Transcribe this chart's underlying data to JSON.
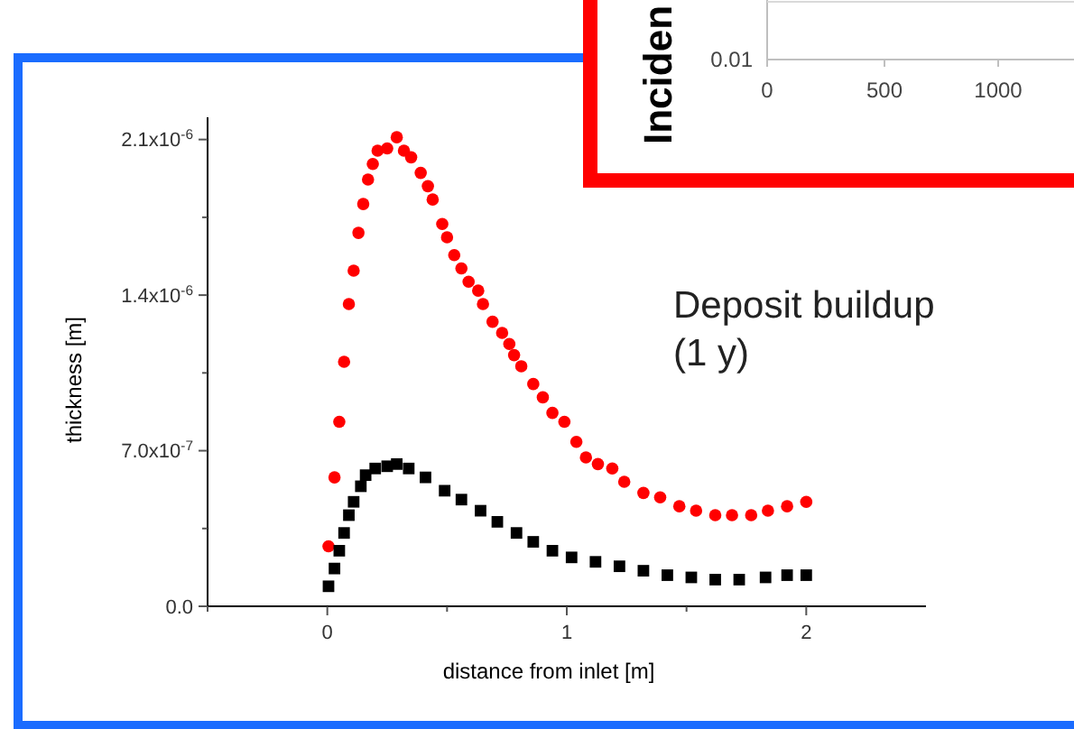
{
  "chart_data": [
    {
      "type": "scatter",
      "xlabel": "distance from inlet [m]",
      "ylabel": "thickness [m]",
      "xlim": [
        -0.5,
        2.5
      ],
      "xticks": [
        {
          "value": -0.5,
          "label": null
        },
        0,
        {
          "value": 0.5,
          "label": null
        },
        1,
        {
          "value": 1.5,
          "label": null
        },
        2
      ],
      "ylim": [
        0,
        2.2e-06
      ],
      "yticks": [
        {
          "value": 0,
          "label": "0.0"
        },
        {
          "value": 3.5e-07,
          "label": null
        },
        {
          "value": 7e-07,
          "label": "7.0x10$^{-7}$"
        },
        {
          "value": 1.05e-06,
          "label": null
        },
        {
          "value": 1.4e-06,
          "label": "1.4x10$^{-6}$"
        },
        {
          "value": 1.75e-06,
          "label": null
        },
        {
          "value": 2.1e-06,
          "label": "2.1x10$^{-6}$"
        }
      ],
      "grid": false,
      "annotations": [
        "Deposit buildup\n(1 y)"
      ],
      "series": [
        {
          "color": "#ff0000",
          "marker": "circle",
          "x": [
            0.005,
            0.03,
            0.05,
            0.07,
            0.09,
            0.11,
            0.13,
            0.15,
            0.17,
            0.19,
            0.21,
            0.25,
            0.29,
            0.32,
            0.35,
            0.39,
            0.42,
            0.44,
            0.48,
            0.5,
            0.53,
            0.56,
            0.59,
            0.63,
            0.65,
            0.69,
            0.73,
            0.76,
            0.78,
            0.81,
            0.86,
            0.9,
            0.94,
            0.99,
            1.04,
            1.08,
            1.13,
            1.19,
            1.24,
            1.32,
            1.39,
            1.47,
            1.54,
            1.62,
            1.69,
            1.77,
            1.84,
            1.92,
            2.0
          ],
          "values": [
            2.7e-07,
            5.8e-07,
            8.3e-07,
            1.1e-06,
            1.36e-06,
            1.51e-06,
            1.68e-06,
            1.81e-06,
            1.92e-06,
            1.99e-06,
            2.05e-06,
            2.06e-06,
            2.11e-06,
            2.05e-06,
            2.02e-06,
            1.95e-06,
            1.89e-06,
            1.83e-06,
            1.72e-06,
            1.66e-06,
            1.58e-06,
            1.52e-06,
            1.46e-06,
            1.42e-06,
            1.36e-06,
            1.28e-06,
            1.23e-06,
            1.18e-06,
            1.13e-06,
            1.08e-06,
            1e-06,
            9.4e-07,
            8.7e-07,
            8.3e-07,
            7.4e-07,
            6.7e-07,
            6.4e-07,
            6.2e-07,
            5.6e-07,
            5.1e-07,
            4.9e-07,
            4.5e-07,
            4.3e-07,
            4.1e-07,
            4.1e-07,
            4.1e-07,
            4.3e-07,
            4.5e-07,
            4.7e-07
          ]
        },
        {
          "color": "#000000",
          "marker": "square",
          "x": [
            0.005,
            0.03,
            0.05,
            0.07,
            0.09,
            0.11,
            0.14,
            0.16,
            0.2,
            0.25,
            0.29,
            0.34,
            0.41,
            0.49,
            0.56,
            0.64,
            0.71,
            0.79,
            0.86,
            0.94,
            1.02,
            1.12,
            1.22,
            1.32,
            1.42,
            1.52,
            1.62,
            1.72,
            1.83,
            1.92,
            2.0
          ],
          "values": [
            9e-08,
            1.7e-07,
            2.5e-07,
            3.3e-07,
            4.1e-07,
            4.7e-07,
            5.4e-07,
            5.9e-07,
            6.2e-07,
            6.3e-07,
            6.4e-07,
            6.2e-07,
            5.8e-07,
            5.2e-07,
            4.8e-07,
            4.3e-07,
            3.8e-07,
            3.3e-07,
            2.9e-07,
            2.5e-07,
            2.2e-07,
            2e-07,
            1.8e-07,
            1.6e-07,
            1.4e-07,
            1.3e-07,
            1.2e-07,
            1.2e-07,
            1.3e-07,
            1.4e-07,
            1.4e-07
          ]
        }
      ]
    },
    {
      "type": "other",
      "annotations": [
        "Inciden",
        "0.01",
        "0",
        "500",
        "1000"
      ]
    }
  ]
}
